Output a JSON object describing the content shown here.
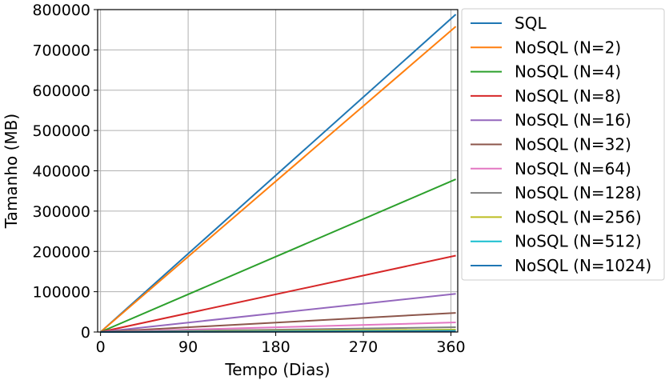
{
  "chart_data": {
    "type": "line",
    "title": "",
    "xlabel": "Tempo (Dias)",
    "ylabel": "Tamanho (MB)",
    "xlim": [
      -3,
      367
    ],
    "ylim": [
      0,
      800000
    ],
    "xticks": [
      0,
      90,
      180,
      270,
      360
    ],
    "xtick_labels": [
      "0",
      "90",
      "180",
      "270",
      "360"
    ],
    "yticks": [
      0,
      100000,
      200000,
      300000,
      400000,
      500000,
      600000,
      700000,
      800000
    ],
    "ytick_labels": [
      "0",
      "100000",
      "200000",
      "300000",
      "400000",
      "500000",
      "600000",
      "700000",
      "800000"
    ],
    "grid": true,
    "legend_position": "outside-right",
    "x": [
      0,
      365
    ],
    "series": [
      {
        "name": "SQL",
        "color": "#1f77b4",
        "values": [
          0,
          788000
        ]
      },
      {
        "name": "NoSQL (N=2)",
        "color": "#ff7f0e",
        "values": [
          0,
          758000
        ]
      },
      {
        "name": "NoSQL (N=4)",
        "color": "#2ca02c",
        "values": [
          0,
          379000
        ]
      },
      {
        "name": "NoSQL (N=8)",
        "color": "#d62728",
        "values": [
          0,
          189500
        ]
      },
      {
        "name": "NoSQL (N=16)",
        "color": "#9467bd",
        "values": [
          0,
          94800
        ]
      },
      {
        "name": "NoSQL (N=32)",
        "color": "#8c564b",
        "values": [
          0,
          47400
        ]
      },
      {
        "name": "NoSQL (N=64)",
        "color": "#e377c2",
        "values": [
          0,
          23700
        ]
      },
      {
        "name": "NoSQL (N=128)",
        "color": "#7f7f7f",
        "values": [
          0,
          11800
        ]
      },
      {
        "name": "NoSQL (N=256)",
        "color": "#bcbd22",
        "values": [
          0,
          5900
        ]
      },
      {
        "name": "NoSQL (N=512)",
        "color": "#17becf",
        "values": [
          0,
          3000
        ]
      },
      {
        "name": "NoSQL (N=1024)",
        "color": "#1f77b4",
        "values": [
          0,
          1500
        ]
      }
    ]
  }
}
